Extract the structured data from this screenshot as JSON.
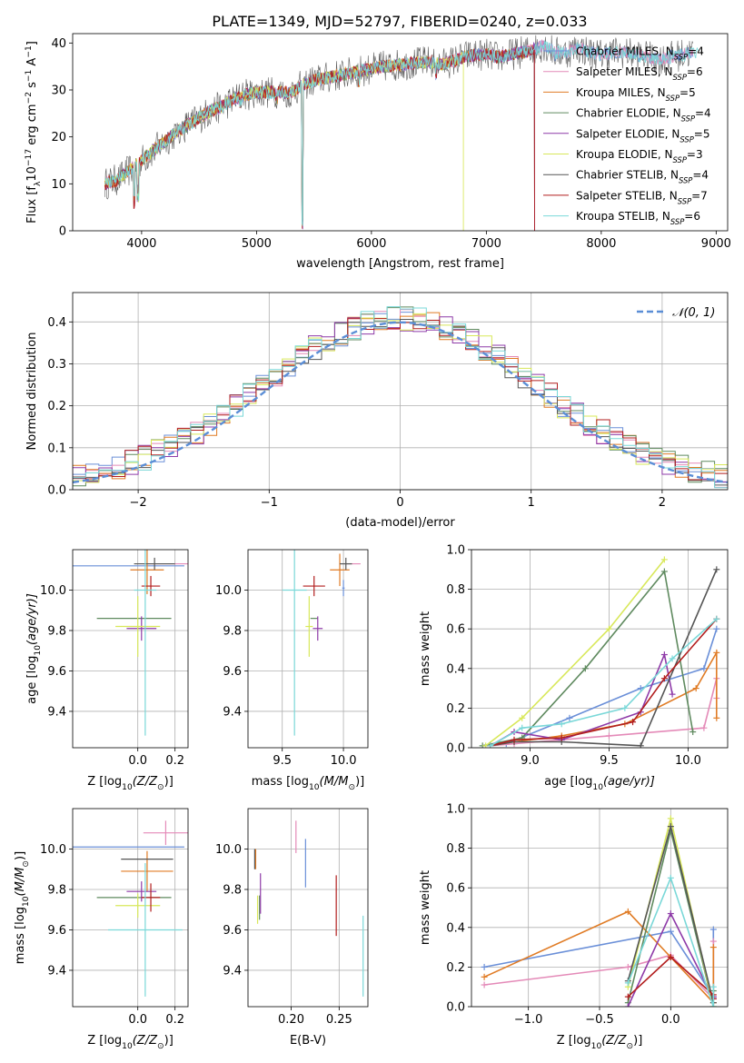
{
  "title": "PLATE=1349, MJD=52797, FIBERID=0240, z=0.033",
  "colors": [
    "#6a8fd8",
    "#e48ab8",
    "#e07b24",
    "#5f8a5f",
    "#8e3aa8",
    "#d8e85a",
    "#555555",
    "#b21e1e",
    "#7ad8d8"
  ],
  "chart_data": [
    {
      "id": "spectrum",
      "type": "line",
      "xlabel": "wavelength [Angstrom, rest frame]",
      "ylabel": "Flux [f",
      "ylabel_parts": [
        "Flux [f",
        "λ",
        "10",
        "−17",
        " erg cm",
        "−2",
        " s",
        "−1",
        " A",
        "−1",
        "]"
      ],
      "xlim": [
        3400,
        9100
      ],
      "ylim": [
        0,
        42
      ],
      "xticks": [
        "4000",
        "5000",
        "6000",
        "7000",
        "8000",
        "9000"
      ],
      "xtick_values": [
        4000,
        5000,
        6000,
        7000,
        8000,
        9000
      ],
      "yticks": [
        "0",
        "10",
        "20",
        "30",
        "40"
      ],
      "ytick_values": [
        0,
        10,
        20,
        30,
        40
      ],
      "grid": false,
      "legend_position": "top-right",
      "legend": [
        {
          "label": "Chabrier MILES, N",
          "sub": "SSP",
          "suffix": "=4"
        },
        {
          "label": "Salpeter MILES, N",
          "sub": "SSP",
          "suffix": "=6"
        },
        {
          "label": "Kroupa MILES, N",
          "sub": "SSP",
          "suffix": "=5"
        },
        {
          "label": "Chabrier ELODIE, N",
          "sub": "SSP",
          "suffix": "=4"
        },
        {
          "label": "Salpeter ELODIE, N",
          "sub": "SSP",
          "suffix": "=5"
        },
        {
          "label": "Kroupa ELODIE, N",
          "sub": "SSP",
          "suffix": "=3"
        },
        {
          "label": "Chabrier STELIB, N",
          "sub": "SSP",
          "suffix": "=4"
        },
        {
          "label": "Salpeter STELIB, N",
          "sub": "SSP",
          "suffix": "=7"
        },
        {
          "label": "Kroupa STELIB, N",
          "sub": "SSP",
          "suffix": "=6"
        }
      ],
      "continuum": [
        [
          3680,
          10
        ],
        [
          3800,
          11
        ],
        [
          3900,
          13
        ],
        [
          4000,
          15
        ],
        [
          4100,
          17
        ],
        [
          4200,
          19
        ],
        [
          4300,
          21
        ],
        [
          4400,
          22.5
        ],
        [
          4500,
          24
        ],
        [
          4600,
          25.5
        ],
        [
          4700,
          26.5
        ],
        [
          4800,
          28
        ],
        [
          4900,
          29
        ],
        [
          5000,
          29.5
        ],
        [
          5100,
          29.5
        ],
        [
          5200,
          29.5
        ],
        [
          5300,
          29.5
        ],
        [
          5400,
          31
        ],
        [
          5500,
          32
        ],
        [
          5600,
          32.5
        ],
        [
          5700,
          33
        ],
        [
          5800,
          33.5
        ],
        [
          5900,
          34
        ],
        [
          6000,
          34.5
        ],
        [
          6100,
          35
        ],
        [
          6200,
          35.2
        ],
        [
          6300,
          35.5
        ],
        [
          6400,
          35.8
        ],
        [
          6500,
          36
        ],
        [
          6600,
          35.5
        ],
        [
          6700,
          36
        ],
        [
          6800,
          37
        ],
        [
          6900,
          37.5
        ],
        [
          7000,
          37.5
        ],
        [
          7100,
          37
        ],
        [
          7200,
          37.5
        ],
        [
          7300,
          38
        ],
        [
          7400,
          38.5
        ],
        [
          7500,
          39.5
        ],
        [
          7600,
          38
        ],
        [
          7700,
          38
        ],
        [
          7800,
          39
        ],
        [
          7900,
          38
        ],
        [
          8000,
          37.5
        ],
        [
          8100,
          38
        ],
        [
          8200,
          38
        ],
        [
          8300,
          37.5
        ],
        [
          8400,
          37
        ],
        [
          8500,
          36.5
        ],
        [
          8600,
          37
        ],
        [
          8700,
          37.5
        ],
        [
          8800,
          38
        ],
        [
          8850,
          38
        ]
      ],
      "absorption": [
        [
          3934,
          4
        ],
        [
          3968,
          6
        ],
        [
          4102,
          20
        ],
        [
          4305,
          20
        ],
        [
          4340,
          21
        ],
        [
          4861,
          26
        ],
        [
          5175,
          27
        ],
        [
          5270,
          28
        ],
        [
          5400,
          0
        ],
        [
          5890,
          30
        ],
        [
          6563,
          32
        ],
        [
          7600,
          35
        ]
      ],
      "end_wavelengths": [
        8800,
        8800,
        7420,
        7420,
        7420,
        6800,
        8800,
        7420,
        8850
      ]
    },
    {
      "id": "residuals",
      "type": "step",
      "xlabel": "(data-model)/error",
      "ylabel": "Normed distribution",
      "xlim": [
        -2.5,
        2.5
      ],
      "ylim": [
        0,
        0.47
      ],
      "xticks": [
        "−2",
        "−1",
        "0",
        "1",
        "2"
      ],
      "xtick_values": [
        -2,
        -1,
        0,
        1,
        2
      ],
      "yticks": [
        "0.0",
        "0.1",
        "0.2",
        "0.3",
        "0.4"
      ],
      "ytick_values": [
        0,
        0.1,
        0.2,
        0.3,
        0.4
      ],
      "grid": true,
      "bin_width": 0.1,
      "gaussian_label": "𝒩(0, 1)",
      "gaussian_color": "#5b8ed6",
      "legend_position": "top-right"
    },
    {
      "id": "age-vs-Z",
      "type": "errorbar",
      "xlabel": "Z [log",
      "xlabel_parts": [
        "Z [log",
        "10",
        "(Z/Z",
        "⊙",
        ")]"
      ],
      "ylabel_parts": [
        "age  [log",
        "10",
        "(age/yr)]"
      ],
      "xlim": [
        -0.35,
        0.27
      ],
      "ylim": [
        9.22,
        10.2
      ],
      "xticks": [
        "0.0",
        "0.2"
      ],
      "xtick_values": [
        0,
        0.2
      ],
      "yticks": [
        "9.4",
        "9.6",
        "9.8",
        "10.0"
      ],
      "ytick_values": [
        9.4,
        9.6,
        9.8,
        10
      ],
      "grid": true,
      "points": [
        {
          "x": -0.05,
          "xerr": 0.3,
          "y": 10.12,
          "yerr": 0.0
        },
        {
          "x": 0.15,
          "xerr": 0.12,
          "y": 10.13,
          "yerr": 0.0
        },
        {
          "x": 0.05,
          "xerr": 0.09,
          "y": 10.1,
          "yerr": 0.12
        },
        {
          "x": -0.02,
          "xerr": 0.2,
          "y": 9.86,
          "yerr": 0.0
        },
        {
          "x": 0.02,
          "xerr": 0.08,
          "y": 9.81,
          "yerr": 0.06
        },
        {
          "x": 0.0,
          "xerr": 0.12,
          "y": 9.82,
          "yerr": 0.15
        },
        {
          "x": 0.09,
          "xerr": 0.11,
          "y": 10.13,
          "yerr": 0.03
        },
        {
          "x": 0.07,
          "xerr": 0.05,
          "y": 10.02,
          "yerr": 0.05
        },
        {
          "x": 0.04,
          "xerr": 0.06,
          "y": 10.0,
          "yerr": 0.72
        }
      ]
    },
    {
      "id": "age-vs-mass",
      "type": "errorbar",
      "xlabel_parts": [
        "mass [log",
        "10",
        "(M/M",
        "⊙",
        ")]"
      ],
      "xlim": [
        9.22,
        10.2
      ],
      "ylim": [
        9.22,
        10.2
      ],
      "xticks": [
        "9.5",
        "10.0"
      ],
      "xtick_values": [
        9.5,
        10
      ],
      "yticks": [
        "9.4",
        "9.6",
        "9.8",
        "10.0"
      ],
      "ytick_values": [
        9.4,
        9.6,
        9.8,
        10
      ],
      "grid": true,
      "points": [
        {
          "x": 10.0,
          "xerr": 0.01,
          "y": 10.01,
          "yerr": 0.04
        },
        {
          "x": 10.08,
          "xerr": 0.06,
          "y": 10.13,
          "yerr": 0.0
        },
        {
          "x": 9.97,
          "xerr": 0.08,
          "y": 10.1,
          "yerr": 0.08
        },
        {
          "x": 9.76,
          "xerr": 0.03,
          "y": 9.86,
          "yerr": 0.0
        },
        {
          "x": 9.79,
          "xerr": 0.04,
          "y": 9.81,
          "yerr": 0.06
        },
        {
          "x": 9.72,
          "xerr": 0.03,
          "y": 9.82,
          "yerr": 0.15
        },
        {
          "x": 10.02,
          "xerr": 0.05,
          "y": 10.13,
          "yerr": 0.03
        },
        {
          "x": 9.76,
          "xerr": 0.09,
          "y": 10.02,
          "yerr": 0.05
        },
        {
          "x": 9.6,
          "xerr": 0.1,
          "y": 10.0,
          "yerr": 0.72
        }
      ]
    },
    {
      "id": "massweight-vs-age",
      "type": "line",
      "xlabel_parts": [
        "age  [log",
        "10",
        "(age/yr)]"
      ],
      "ylabel": "mass weight",
      "xlim": [
        8.63,
        10.25
      ],
      "ylim": [
        0,
        1.0
      ],
      "xticks": [
        "9.0",
        "9.5",
        "10.0"
      ],
      "xtick_values": [
        9,
        9.5,
        10
      ],
      "yticks": [
        "0.0",
        "0.2",
        "0.4",
        "0.6",
        "0.8",
        "1.0"
      ],
      "ytick_values": [
        0,
        0.2,
        0.4,
        0.6,
        0.8,
        1
      ],
      "grid": true,
      "series": [
        [
          [
            8.75,
            0.01
          ],
          [
            8.85,
            0.02
          ],
          [
            9.25,
            0.15
          ],
          [
            9.7,
            0.3
          ],
          [
            10.1,
            0.4
          ],
          [
            10.18,
            0.6
          ]
        ],
        [
          [
            8.75,
            0.01
          ],
          [
            8.9,
            0.02
          ],
          [
            9.5,
            0.06
          ],
          [
            10.1,
            0.1
          ],
          [
            10.18,
            0.35
          ],
          [
            10.18,
            0.25
          ]
        ],
        [
          [
            8.75,
            0.01
          ],
          [
            8.9,
            0.03
          ],
          [
            9.2,
            0.06
          ],
          [
            9.6,
            0.12
          ],
          [
            10.05,
            0.3
          ],
          [
            10.18,
            0.48
          ],
          [
            10.18,
            0.15
          ]
        ],
        [
          [
            8.7,
            0.01
          ],
          [
            8.95,
            0.05
          ],
          [
            9.35,
            0.4
          ],
          [
            9.85,
            0.89
          ],
          [
            10.03,
            0.08
          ]
        ],
        [
          [
            8.75,
            0.01
          ],
          [
            8.9,
            0.08
          ],
          [
            9.2,
            0.04
          ],
          [
            9.7,
            0.18
          ],
          [
            9.85,
            0.47
          ],
          [
            9.9,
            0.27
          ]
        ],
        [
          [
            8.72,
            0.01
          ],
          [
            8.95,
            0.15
          ],
          [
            9.5,
            0.6
          ],
          [
            9.85,
            0.95
          ]
        ],
        [
          [
            8.75,
            0.01
          ],
          [
            8.9,
            0.03
          ],
          [
            9.2,
            0.03
          ],
          [
            9.7,
            0.01
          ],
          [
            10.18,
            0.9
          ]
        ],
        [
          [
            8.75,
            0.01
          ],
          [
            8.9,
            0.04
          ],
          [
            9.2,
            0.05
          ],
          [
            9.65,
            0.13
          ],
          [
            9.85,
            0.35
          ],
          [
            10.18,
            0.65
          ]
        ],
        [
          [
            8.75,
            0.01
          ],
          [
            8.95,
            0.1
          ],
          [
            9.2,
            0.12
          ],
          [
            9.6,
            0.2
          ],
          [
            9.9,
            0.45
          ],
          [
            10.18,
            0.65
          ]
        ]
      ]
    },
    {
      "id": "mass-vs-Z",
      "type": "errorbar",
      "xlabel_parts": [
        "Z [log",
        "10",
        "(Z/Z",
        "⊙",
        ")]"
      ],
      "ylabel_parts": [
        "mass [log",
        "10",
        "(M/M",
        "⊙",
        ")]"
      ],
      "xlim": [
        -0.35,
        0.27
      ],
      "ylim": [
        9.22,
        10.2
      ],
      "xticks": [
        "0.0",
        "0.2"
      ],
      "xtick_values": [
        0,
        0.2
      ],
      "yticks": [
        "9.4",
        "9.6",
        "9.8",
        "10.0"
      ],
      "ytick_values": [
        9.4,
        9.6,
        9.8,
        10
      ],
      "grid": true,
      "points": [
        {
          "x": -0.05,
          "xerr": 0.3,
          "y": 10.01,
          "yerr": 0.0
        },
        {
          "x": 0.15,
          "xerr": 0.12,
          "y": 10.08,
          "yerr": 0.06
        },
        {
          "x": 0.05,
          "xerr": 0.14,
          "y": 9.89,
          "yerr": 0.1
        },
        {
          "x": -0.02,
          "xerr": 0.2,
          "y": 9.76,
          "yerr": 0.0
        },
        {
          "x": 0.02,
          "xerr": 0.08,
          "y": 9.79,
          "yerr": 0.05
        },
        {
          "x": 0.0,
          "xerr": 0.12,
          "y": 9.72,
          "yerr": 0.06
        },
        {
          "x": 0.05,
          "xerr": 0.14,
          "y": 9.95,
          "yerr": 0.0
        },
        {
          "x": 0.07,
          "xerr": 0.05,
          "y": 9.76,
          "yerr": 0.07
        },
        {
          "x": 0.04,
          "xerr": 0.2,
          "y": 9.6,
          "yerr": 0.33
        }
      ]
    },
    {
      "id": "mass-vs-EBV",
      "type": "errorbar",
      "xlabel": "E(B-V)",
      "xlim": [
        0.155,
        0.28
      ],
      "ylim": [
        9.22,
        10.2
      ],
      "xticks": [
        "0.20",
        "0.25"
      ],
      "xtick_values": [
        0.2,
        0.25
      ],
      "yticks": [
        "9.4",
        "9.6",
        "9.8",
        "10.0"
      ],
      "ytick_values": [
        9.4,
        9.6,
        9.8,
        10
      ],
      "grid": true,
      "points": [
        {
          "x": 0.215,
          "xerr": 0,
          "y": 9.93,
          "yerr": 0.12
        },
        {
          "x": 0.205,
          "xerr": 0,
          "y": 10.06,
          "yerr": 0.08
        },
        {
          "x": 0.163,
          "xerr": 0,
          "y": 9.95,
          "yerr": 0.05
        },
        {
          "x": 0.167,
          "xerr": 0,
          "y": 9.71,
          "yerr": 0.06
        },
        {
          "x": 0.168,
          "xerr": 0,
          "y": 9.78,
          "yerr": 0.1
        },
        {
          "x": 0.165,
          "xerr": 0,
          "y": 9.7,
          "yerr": 0.07
        },
        {
          "x": 0.162,
          "xerr": 0,
          "y": 9.95,
          "yerr": 0.05
        },
        {
          "x": 0.247,
          "xerr": 0,
          "y": 9.72,
          "yerr": 0.15
        },
        {
          "x": 0.275,
          "xerr": 0,
          "y": 9.47,
          "yerr": 0.2
        }
      ]
    },
    {
      "id": "massweight-vs-Z",
      "type": "line",
      "xlabel_parts": [
        "Z [log",
        "10",
        "(Z/Z",
        "⊙",
        ")]"
      ],
      "ylabel": "mass weight",
      "xlim": [
        -1.4,
        0.4
      ],
      "ylim": [
        0,
        1.0
      ],
      "xticks": [
        "−1.0",
        "−0.5",
        "0.0"
      ],
      "xtick_values": [
        -1,
        -0.5,
        0
      ],
      "yticks": [
        "0.0",
        "0.2",
        "0.4",
        "0.6",
        "0.8",
        "1.0"
      ],
      "ytick_values": [
        0,
        0.2,
        0.4,
        0.6,
        0.8,
        1
      ],
      "grid": true,
      "series": [
        [
          [
            -1.31,
            0.2
          ],
          [
            0,
            0.38
          ],
          [
            0.3,
            0.05
          ],
          [
            0.3,
            0.39
          ]
        ],
        [
          [
            -1.31,
            0.11
          ],
          [
            -0.3,
            0.2
          ],
          [
            0,
            0.26
          ],
          [
            0.3,
            0.04
          ],
          [
            0.3,
            0.33
          ]
        ],
        [
          [
            -1.31,
            0.15
          ],
          [
            -0.3,
            0.48
          ],
          [
            0,
            0.25
          ],
          [
            0.3,
            0.02
          ],
          [
            0.3,
            0.3
          ]
        ],
        [
          [
            -0.3,
            0.02
          ],
          [
            0,
            0.89
          ],
          [
            0.3,
            0.0
          ],
          [
            0.3,
            0.08
          ]
        ],
        [
          [
            -0.3,
            0.0
          ],
          [
            0,
            0.47
          ],
          [
            0.3,
            0.04
          ],
          [
            0.3,
            0.05
          ]
        ],
        [
          [
            -0.3,
            0.1
          ],
          [
            0,
            0.95
          ],
          [
            0.3,
            0.0
          ]
        ],
        [
          [
            -0.3,
            0.13
          ],
          [
            0,
            0.91
          ],
          [
            0.3,
            0.02
          ]
        ],
        [
          [
            -0.3,
            0.05
          ],
          [
            0,
            0.25
          ],
          [
            0.3,
            0.06
          ],
          [
            0.3,
            0.04
          ]
        ],
        [
          [
            -0.3,
            0.12
          ],
          [
            0,
            0.65
          ],
          [
            0.3,
            0.0
          ],
          [
            0.3,
            0.1
          ]
        ]
      ]
    }
  ]
}
